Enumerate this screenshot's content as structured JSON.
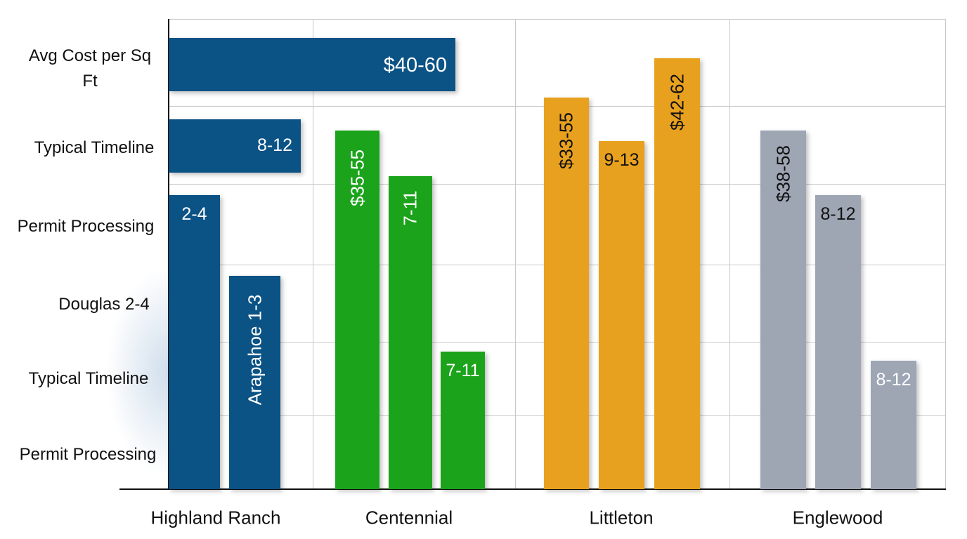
{
  "chart_data": {
    "type": "bar",
    "title": "",
    "y_category_labels": [
      "Avg Cost  per Sq Ft",
      "Typical Timeline",
      "Permit Processing",
      "Douglas 2-4",
      "Typical Timeline",
      "Permit Processing"
    ],
    "categories": [
      "Highland Ranch",
      "Centennial",
      "Littleton",
      "Englewood"
    ],
    "grid": true,
    "groups": [
      {
        "category": "Highland Ranch",
        "color": "#0B5285",
        "bars": [
          {
            "label": "$40-60",
            "orientation": "horizontal"
          },
          {
            "label": "8-12",
            "orientation": "horizontal"
          },
          {
            "label": "2-4",
            "orientation": "vertical"
          },
          {
            "label": "Arapahoe 1-3",
            "orientation": "vertical"
          }
        ]
      },
      {
        "category": "Centennial",
        "color": "#1BA31B",
        "bars": [
          {
            "label": "$35-55"
          },
          {
            "label": "7-11"
          },
          {
            "label": "7-11"
          }
        ]
      },
      {
        "category": "Littleton",
        "color": "#E8A11E",
        "bars": [
          {
            "label": "$33-55"
          },
          {
            "label": "9-13"
          },
          {
            "label": "$42-62"
          }
        ]
      },
      {
        "category": "Englewood",
        "color": "#9EA6B4",
        "bars": [
          {
            "label": "$38-58"
          },
          {
            "label": "8-12"
          },
          {
            "label": "8-12"
          }
        ]
      }
    ]
  }
}
